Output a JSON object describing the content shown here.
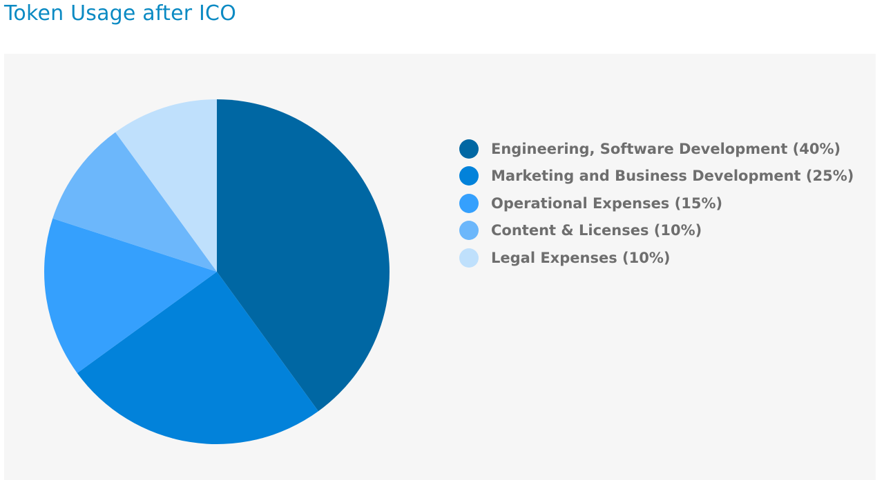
{
  "page": {
    "title": "Token Usage after ICO"
  },
  "colors": {
    "title": "#0b8ac3",
    "panel_bg": "#f6f6f6",
    "legend_text": "#6e6e6e"
  },
  "chart_data": {
    "type": "pie",
    "title": "Token Usage after ICO",
    "legend_position": "right",
    "start": "12 o'clock",
    "direction": "clockwise",
    "slices": [
      {
        "label": "Engineering, Software Development (40%)",
        "value": 40,
        "color": "#0067a3"
      },
      {
        "label": "Marketing and Business Development (25%)",
        "value": 25,
        "color": "#0282da"
      },
      {
        "label": "Operational Expenses (15%)",
        "value": 15,
        "color": "#35a0fd"
      },
      {
        "label": "Content & Licenses (10%)",
        "value": 10,
        "color": "#6cb7fb"
      },
      {
        "label": "Legal Expenses (10%)",
        "value": 10,
        "color": "#bfe0fc"
      }
    ]
  }
}
